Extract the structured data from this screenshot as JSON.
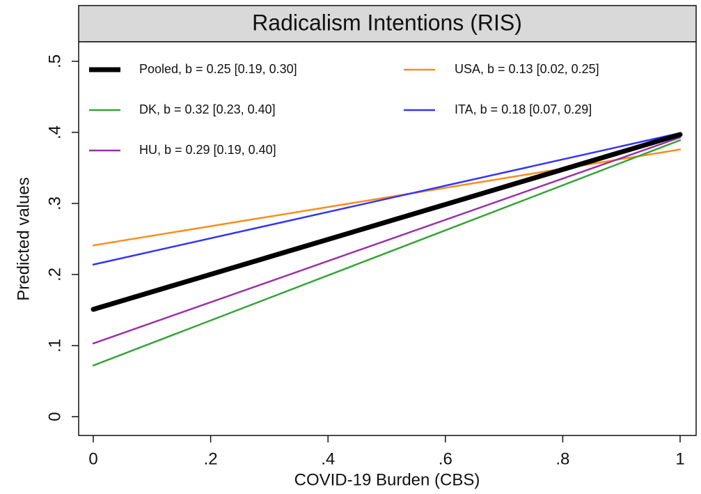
{
  "chart_data": {
    "type": "line",
    "title": "Radicalism Intentions (RIS)",
    "x_label": "COVID-19 Burden (CBS)",
    "y_label": "Predicted values",
    "x": [
      0,
      1
    ],
    "series": [
      {
        "name": "Pooled, b = 0.25 [0.19, 0.30]",
        "color": "#000000",
        "width": 7,
        "values": [
          0.151,
          0.397
        ]
      },
      {
        "name": "USA, b = 0.13 [0.02, 0.25]",
        "color": "#ff8c1a",
        "width": 2.5,
        "values": [
          0.241,
          0.376
        ]
      },
      {
        "name": "DK, b = 0.32 [0.23, 0.40]",
        "color": "#36a336",
        "width": 2.5,
        "values": [
          0.072,
          0.389
        ]
      },
      {
        "name": "ITA, b = 0.18 [0.07, 0.29]",
        "color": "#3333ff",
        "width": 2.5,
        "values": [
          0.214,
          0.399
        ]
      },
      {
        "name": "HU, b = 0.29 [0.19, 0.40]",
        "color": "#9b30a8",
        "width": 2.5,
        "values": [
          0.103,
          0.393
        ]
      }
    ],
    "xlim": [
      0,
      1
    ],
    "xticks": [
      0,
      {
        "value": 0.2,
        "label": ".2"
      },
      {
        "value": 0.4,
        "label": ".4"
      },
      {
        "value": 0.6,
        "label": ".6"
      },
      {
        "value": 0.8,
        "label": ".8"
      },
      1
    ],
    "ylim": [
      0,
      0.5
    ],
    "yticks": [
      0,
      {
        "value": 0.1,
        "label": ".1"
      },
      {
        "value": 0.2,
        "label": ".2"
      },
      {
        "value": 0.3,
        "label": ".3"
      },
      {
        "value": 0.4,
        "label": ".4"
      },
      {
        "value": 0.5,
        "label": ".5"
      }
    ],
    "grid": false
  }
}
